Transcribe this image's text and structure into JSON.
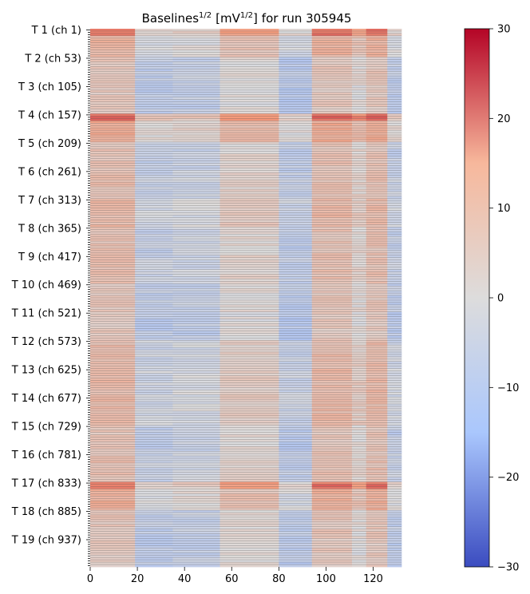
{
  "chart_data": {
    "type": "heatmap",
    "title": {
      "main": "Baselines",
      "main_exp": "1/2",
      "units_pre": "[mV",
      "units_exp": "1/2",
      "units_post": "]",
      "run_text": "for run 305945"
    },
    "x_range": [
      0,
      132
    ],
    "x_ticks": [
      0,
      20,
      40,
      60,
      80,
      100,
      120
    ],
    "y_channels_total": 988,
    "channels_per_tile": 52,
    "rows_per_tile": 12,
    "y_tick_labels": [
      "T 1 (ch 1)",
      "T 2 (ch 53)",
      "T 3 (ch 105)",
      "T 4 (ch 157)",
      "T 5 (ch 209)",
      "T 6 (ch 261)",
      "T 7 (ch 313)",
      "T 8 (ch 365)",
      "T 9 (ch 417)",
      "T 10 (ch 469)",
      "T 11 (ch 521)",
      "T 12 (ch 573)",
      "T 13 (ch 625)",
      "T 14 (ch 677)",
      "T 15 (ch 729)",
      "T 16 (ch 781)",
      "T 17 (ch 833)",
      "T 18 (ch 885)",
      "T 19 (ch 937)"
    ],
    "column_bands": [
      {
        "x": [
          0,
          19
        ],
        "value": 5
      },
      {
        "x": [
          19,
          35
        ],
        "value": -5
      },
      {
        "x": [
          35,
          55
        ],
        "value": -4
      },
      {
        "x": [
          55,
          80
        ],
        "value": 1
      },
      {
        "x": [
          80,
          94
        ],
        "value": -6
      },
      {
        "x": [
          94,
          111
        ],
        "value": 5
      },
      {
        "x": [
          111,
          117
        ],
        "value": 1
      },
      {
        "x": [
          117,
          126
        ],
        "value": 5
      },
      {
        "x": [
          126,
          132
        ],
        "value": -5
      }
    ],
    "tile_offsets": [
      6,
      0,
      -1,
      9,
      1,
      2,
      4,
      1,
      2,
      0,
      -1,
      3,
      4,
      4,
      0,
      2,
      7,
      0,
      -1
    ],
    "hot_tiles": [
      0,
      3,
      16
    ],
    "colorbar": {
      "colormap": "coolwarm",
      "vmin": -30,
      "vmax": 30,
      "ticks": [
        -30,
        -20,
        -10,
        0,
        10,
        20,
        30
      ],
      "colors": {
        "low": "#3b4cc0",
        "mid_low": "#aac7fd",
        "mid": "#dddcdc",
        "mid_high": "#f7b89c",
        "high": "#b40426"
      }
    }
  }
}
